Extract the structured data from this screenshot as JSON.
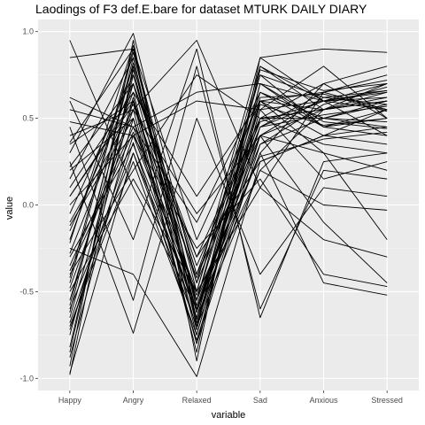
{
  "chart_data": {
    "type": "line",
    "title": "Laodings of F3 def.E.bare for dataset MTURK DAILY DIARY",
    "xlabel": "variable",
    "ylabel": "value",
    "categories": [
      "Happy",
      "Angry",
      "Relaxed",
      "Sad",
      "Anxious",
      "Stressed"
    ],
    "ylim": [
      -1.07,
      1.07
    ],
    "yticks": [
      -1.0,
      -0.5,
      0.0,
      0.5,
      1.0
    ],
    "ytick_labels": [
      "-1.0",
      "-0.5",
      "0.0",
      "0.5",
      "1.0"
    ],
    "grid": true,
    "legend": "none",
    "colors": {
      "panel": "#ebebeb",
      "grid_major": "#ffffff",
      "grid_minor": "#f5f5f5",
      "line": "#000000",
      "tick_text": "#4d4d4d"
    },
    "series": [
      {
        "values": [
          0.95,
          0.1,
          -0.6,
          0.4,
          0.55,
          0.6
        ]
      },
      {
        "values": [
          0.85,
          0.9,
          -0.5,
          0.8,
          0.6,
          0.4
        ]
      },
      {
        "values": [
          0.62,
          0.45,
          0.65,
          0.7,
          0.45,
          0.55
        ]
      },
      {
        "values": [
          0.48,
          0.4,
          0.6,
          0.55,
          0.8,
          0.5
        ]
      },
      {
        "values": [
          0.4,
          0.55,
          0.95,
          0.1,
          0.65,
          0.75
        ]
      },
      {
        "values": [
          0.36,
          0.9,
          -0.2,
          0.6,
          0.55,
          0.65
        ]
      },
      {
        "values": [
          0.3,
          0.99,
          -0.45,
          0.85,
          0.9,
          0.88
        ]
      },
      {
        "values": [
          0.22,
          0.7,
          -0.62,
          0.5,
          0.5,
          0.45
        ]
      },
      {
        "values": [
          0.15,
          0.85,
          -0.7,
          0.45,
          0.6,
          0.7
        ]
      },
      {
        "values": [
          0.05,
          0.6,
          -0.3,
          0.25,
          0.4,
          0.55
        ]
      },
      {
        "values": [
          -0.05,
          0.75,
          -0.55,
          0.65,
          0.5,
          0.6
        ]
      },
      {
        "values": [
          -0.12,
          0.5,
          -0.65,
          0.3,
          0.7,
          0.5
        ]
      },
      {
        "values": [
          -0.2,
          0.8,
          -0.4,
          0.4,
          0.3,
          0.2
        ]
      },
      {
        "values": [
          -0.28,
          0.65,
          -0.75,
          0.55,
          0.6,
          0.65
        ]
      },
      {
        "values": [
          -0.35,
          0.45,
          -0.5,
          0.75,
          0.45,
          0.4
        ]
      },
      {
        "values": [
          -0.42,
          0.9,
          -0.6,
          0.2,
          0.55,
          0.7
        ]
      },
      {
        "values": [
          -0.48,
          0.55,
          -0.8,
          0.6,
          0.65,
          0.55
        ]
      },
      {
        "values": [
          -0.55,
          0.7,
          -0.35,
          0.5,
          0.35,
          0.3
        ]
      },
      {
        "values": [
          -0.62,
          0.85,
          -0.7,
          0.7,
          0.6,
          0.62
        ]
      },
      {
        "values": [
          -0.68,
          0.4,
          -0.55,
          0.35,
          0.5,
          0.48
        ]
      },
      {
        "values": [
          -0.75,
          0.6,
          -0.85,
          0.8,
          0.55,
          0.6
        ]
      },
      {
        "values": [
          -0.82,
          0.75,
          -0.45,
          0.45,
          0.65,
          0.72
        ]
      },
      {
        "values": [
          -0.88,
          0.5,
          -0.65,
          0.6,
          0.4,
          0.45
        ]
      },
      {
        "values": [
          -0.93,
          0.95,
          -0.9,
          0.85,
          0.6,
          0.55
        ]
      },
      {
        "values": [
          -0.97,
          0.3,
          -0.6,
          0.5,
          0.55,
          0.6
        ]
      },
      {
        "values": [
          -0.98,
          0.8,
          -0.4,
          0.65,
          0.45,
          0.5
        ]
      },
      {
        "values": [
          0.6,
          -0.2,
          0.9,
          -0.65,
          0.25,
          0.3
        ]
      },
      {
        "values": [
          0.45,
          -0.55,
          0.8,
          -0.6,
          0.2,
          0.15
        ]
      },
      {
        "values": [
          0.25,
          -0.74,
          0.5,
          -0.4,
          0.1,
          0.05
        ]
      },
      {
        "values": [
          -0.4,
          0.2,
          0.75,
          0.5,
          0.7,
          0.8
        ]
      },
      {
        "values": [
          0.1,
          0.65,
          0.05,
          0.6,
          0.3,
          -0.2
        ]
      },
      {
        "values": [
          -0.1,
          0.55,
          -0.05,
          0.4,
          -0.1,
          -0.45
        ]
      },
      {
        "values": [
          0.0,
          0.4,
          -0.25,
          0.15,
          -0.4,
          -0.47
        ]
      },
      {
        "values": [
          -0.3,
          0.35,
          -0.6,
          0.3,
          -0.45,
          -0.52
        ]
      },
      {
        "values": [
          -0.6,
          0.3,
          -0.7,
          0.2,
          0.0,
          -0.03
        ]
      },
      {
        "values": [
          -0.7,
          0.25,
          -0.75,
          0.55,
          0.15,
          0.25
        ]
      },
      {
        "values": [
          -0.5,
          0.15,
          -0.5,
          0.1,
          -0.2,
          -0.3
        ]
      },
      {
        "values": [
          -0.25,
          -0.4,
          -0.99,
          0.25,
          0.4,
          0.35
        ]
      },
      {
        "values": [
          0.55,
          0.45,
          -0.1,
          0.65,
          0.5,
          0.58
        ]
      },
      {
        "values": [
          0.35,
          0.6,
          -0.55,
          0.75,
          0.62,
          0.66
        ]
      },
      {
        "values": [
          -0.15,
          0.7,
          -0.3,
          0.5,
          0.55,
          0.62
        ]
      },
      {
        "values": [
          -0.45,
          0.88,
          -0.58,
          0.45,
          0.52,
          0.57
        ]
      },
      {
        "values": [
          -0.65,
          0.62,
          -0.72,
          0.7,
          0.48,
          0.44
        ]
      },
      {
        "values": [
          0.2,
          0.5,
          -0.8,
          0.35,
          0.58,
          0.68
        ]
      },
      {
        "values": [
          -0.85,
          0.78,
          -0.62,
          0.62,
          0.64,
          0.54
        ]
      },
      {
        "values": [
          -0.38,
          0.42,
          -0.52,
          0.28,
          0.38,
          0.42
        ]
      },
      {
        "values": [
          -0.58,
          0.82,
          -0.68,
          0.58,
          0.46,
          0.5
        ]
      },
      {
        "values": [
          0.05,
          0.58,
          -0.42,
          0.48,
          0.6,
          0.66
        ]
      },
      {
        "values": [
          -0.72,
          0.36,
          -0.78,
          0.4,
          0.62,
          0.58
        ]
      },
      {
        "values": [
          -0.22,
          0.92,
          -0.66,
          0.78,
          0.66,
          0.7
        ]
      }
    ]
  }
}
